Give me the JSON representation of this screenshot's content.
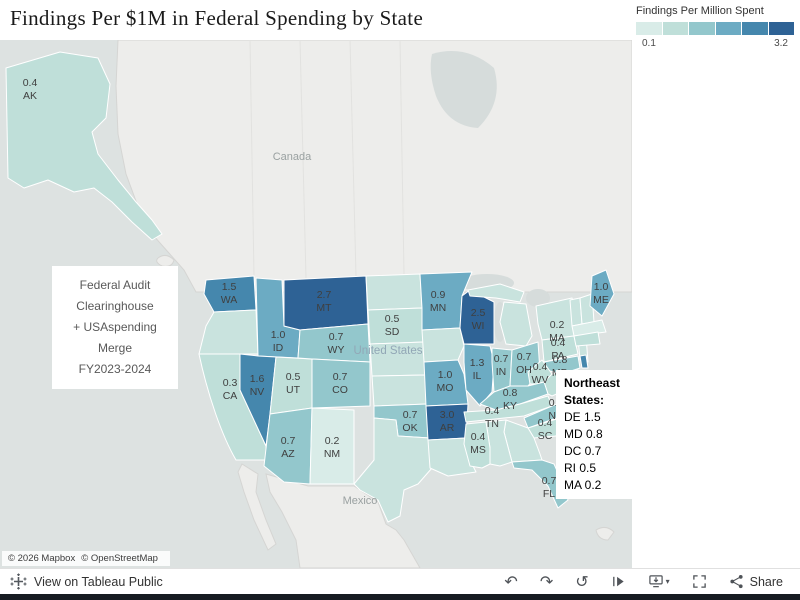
{
  "title": "Findings Per $1M in Federal Spending by State",
  "legend": {
    "title": "Findings Per Million Spent",
    "min_label": "0.1",
    "max_label": "3.2"
  },
  "map": {
    "region_labels": {
      "canada": "Canada",
      "united_states": "United States",
      "mexico": "Mexico"
    },
    "attribution_mapbox": "© 2026 Mapbox",
    "attribution_osm": "© OpenStreetMap"
  },
  "annotations": {
    "source_lines": [
      "Federal Audit",
      "Clearinghouse",
      "+ USAspending",
      "Merge",
      "FY2023-2024"
    ],
    "northeast": {
      "title": "Northeast States:",
      "lines": [
        "DE 1.5",
        "MD 0.8",
        "DC 0.7",
        "RI 0.5",
        "MA 0.2"
      ]
    }
  },
  "toolbar": {
    "view_label": "View on Tableau Public",
    "share_label": "Share",
    "icons": {
      "undo": "↶",
      "redo": "↷",
      "replay": "↺",
      "download_caret": "▾"
    }
  },
  "chart_data": {
    "type": "heatmap",
    "variant": "us-state-choropleth",
    "title": "Findings Per $1M in Federal Spending by State",
    "legend_title": "Findings Per Million Spent",
    "units": "findings per $1M federal spending",
    "color_range": [
      0.1,
      3.2
    ],
    "default_fill": "#c9e3de",
    "scale": {
      "thresholds": [
        0.25,
        0.55,
        0.85,
        1.35,
        2.0
      ],
      "colors": [
        "#d9ece8",
        "#bfdfd9",
        "#93c7cc",
        "#6cabc3",
        "#4587ad",
        "#2e6295"
      ]
    },
    "values": {
      "AK": 0.4,
      "WA": 1.5,
      "ID": 1.0,
      "MT": 2.7,
      "WY": 0.7,
      "NV": 1.6,
      "UT": 0.5,
      "CA": 0.3,
      "AZ": 0.7,
      "NM": 0.2,
      "CO": 0.7,
      "SD": 0.5,
      "MN": 0.9,
      "WI": 2.5,
      "IL": 1.3,
      "IN": 0.7,
      "OH": 0.7,
      "MO": 1.0,
      "AR": 3.0,
      "OK": 0.7,
      "MS": 0.4,
      "TN": 0.4,
      "KY": 0.8,
      "WV": 0.4,
      "VA": 0.4,
      "MD": 0.8,
      "PA": 0.4,
      "NC": 0.8,
      "SC": 0.4,
      "FL": 0.7,
      "ME": 1.0,
      "MA": 0.2,
      "DE": 1.5,
      "DC": 0.7,
      "RI": 0.5
    },
    "source_note": "Federal Audit Clearinghouse + USAspending Merge FY2023-2024"
  }
}
